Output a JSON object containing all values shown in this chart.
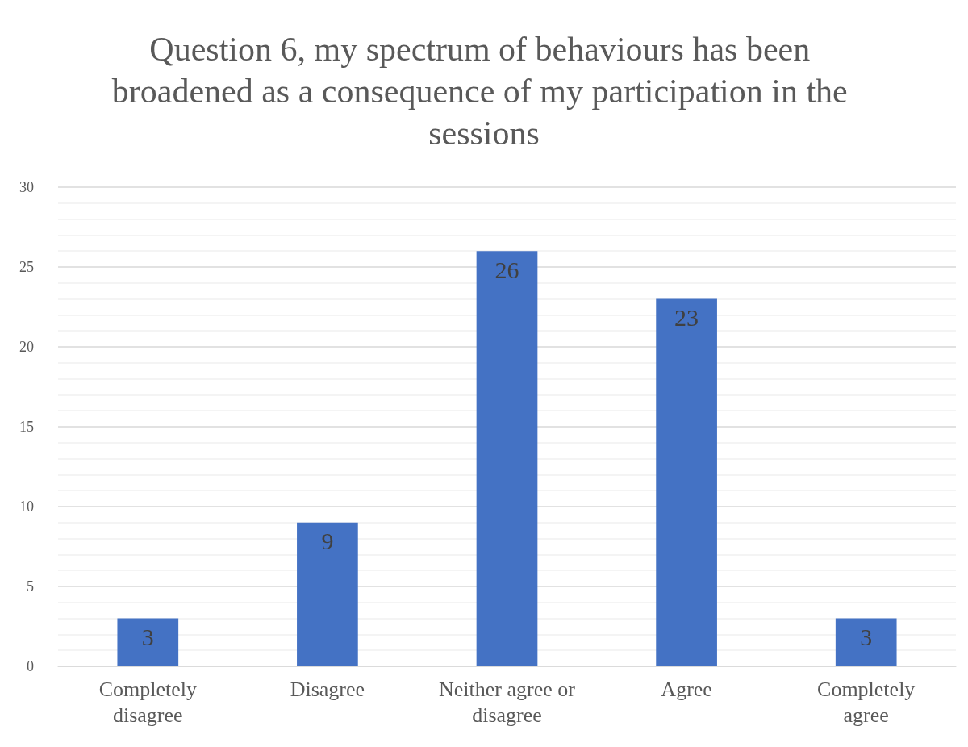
{
  "chart_data": {
    "type": "bar",
    "title": "Question 6, my spectrum of behaviours has been broadened as a consequence of my participation in the sessions",
    "categories": [
      "Completely\ndisagree",
      "Disagree",
      "Neither agree or\ndisagree",
      "Agree",
      "Completely\nagree"
    ],
    "values": [
      3,
      9,
      26,
      23,
      3
    ],
    "color": "#4472c4",
    "ylim": [
      0,
      30
    ],
    "yticks": [
      0,
      5,
      10,
      15,
      20,
      25,
      30
    ],
    "grid": "y",
    "data_labels": true
  }
}
